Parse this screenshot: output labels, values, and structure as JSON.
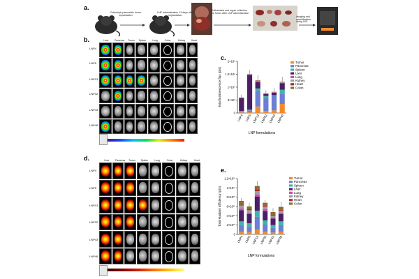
{
  "panel_a": {
    "label": "a.",
    "step1": "Orthotopic pancreatic tumor implantation",
    "step2": "LNP administration 13 days after implantation",
    "step3": "Euthanasia and organ collection 12 hours after LNP administration",
    "step4": "Imaging and quantification using IVIS"
  },
  "panel_b": {
    "label": "b.",
    "columns": [
      "Liver",
      "Pancreas",
      "Tumor",
      "Spleen",
      "Lung",
      "Colon",
      "Kidney",
      "Heart"
    ],
    "rows": [
      "LNP4",
      "LNP5",
      "LNP13",
      "LNP32",
      "LNP43",
      "LNP46"
    ]
  },
  "panel_d": {
    "label": "d.",
    "columns": [
      "Liver",
      "Pancreas",
      "Tumor",
      "Spleen",
      "Lung",
      "Colon",
      "Kidney",
      "Heart"
    ],
    "rows": [
      "LNP4",
      "LNP5",
      "LNP13",
      "LNP32",
      "LNP43",
      "LNP46"
    ]
  },
  "panel_c": {
    "label": "c."
  },
  "panel_e": {
    "label": "e."
  },
  "colors": {
    "Tumor": "#f28a2c",
    "Pancreas": "#6b7fd4",
    "Spleen": "#3fb5a8",
    "Liver": "#4b1f66",
    "Lung": "#c94fb4",
    "Kidney": "#9e9e9e",
    "Heart": "#b0282b",
    "Colon": "#8a6d2f"
  },
  "chart_data": [
    {
      "type": "bar",
      "stacked": true,
      "title": "",
      "xlabel": "LNP formulations",
      "ylabel": "Total luminescence flux (p/s)",
      "ylim": [
        0,
        200000000.0
      ],
      "yticks": [
        0,
        50000000.0,
        100000000.0,
        150000000.0,
        200000000.0
      ],
      "ytick_labels": [
        "0",
        "5×10⁷",
        "1×10⁸",
        "1.5×10⁸",
        "2×10⁸"
      ],
      "categories": [
        "LNP4",
        "LNP5",
        "LNP13",
        "LNP32",
        "LNP43",
        "LNP46"
      ],
      "legend": [
        "Tumor",
        "Pancreas",
        "Spleen",
        "Liver",
        "Lung",
        "Kidney",
        "Heart",
        "Colon"
      ],
      "series": [
        {
          "name": "Tumor",
          "values": [
            2000000.0,
            4000000.0,
            25000000.0,
            8000000.0,
            10000000.0,
            35000000.0
          ]
        },
        {
          "name": "Pancreas",
          "values": [
            4000000.0,
            6000000.0,
            60000000.0,
            50000000.0,
            55000000.0,
            40000000.0
          ]
        },
        {
          "name": "Spleen",
          "values": [
            2000000.0,
            3000000.0,
            10000000.0,
            8000000.0,
            4000000.0,
            15000000.0
          ]
        },
        {
          "name": "Liver",
          "values": [
            50000000.0,
            135000000.0,
            25000000.0,
            8000000.0,
            10000000.0,
            25000000.0
          ]
        },
        {
          "name": "Lung",
          "values": [
            500000.0,
            1000000.0,
            3000000.0,
            1000000.0,
            1000000.0,
            2000000.0
          ]
        },
        {
          "name": "Kidney",
          "values": [
            500000.0,
            1000000.0,
            2000000.0,
            1000000.0,
            1000000.0,
            2000000.0
          ]
        },
        {
          "name": "Heart",
          "values": [
            500000.0,
            500000.0,
            1000000.0,
            500000.0,
            500000.0,
            1000000.0
          ]
        },
        {
          "name": "Colon",
          "values": [
            500000.0,
            500000.0,
            1000000.0,
            500000.0,
            500000.0,
            1000000.0
          ]
        }
      ]
    },
    {
      "type": "bar",
      "stacked": true,
      "title": "",
      "xlabel": "LNP formulations",
      "ylabel": "Total Radiant Efficiency (p/s)",
      "ylim": [
        0,
        120000000000.0
      ],
      "yticks": [
        0,
        20000000000.0,
        40000000000.0,
        60000000000.0,
        80000000000.0,
        100000000000.0,
        120000000000.0
      ],
      "ytick_labels": [
        "0",
        "2×10¹⁰",
        "4×10¹⁰",
        "6×10¹⁰",
        "8×10¹⁰",
        "1×10¹¹",
        "1.2×10¹¹"
      ],
      "categories": [
        "LNP4",
        "LNP5",
        "LNP13",
        "LNP32",
        "LNP43",
        "LNP46"
      ],
      "legend": [
        "Tumor",
        "Pancreas",
        "Spleen",
        "Liver",
        "Lung",
        "Kidney",
        "Heart",
        "Colon"
      ],
      "series": [
        {
          "name": "Tumor",
          "values": [
            6000000000.0,
            5000000000.0,
            10000000000.0,
            6000000000.0,
            4000000000.0,
            6000000000.0
          ]
        },
        {
          "name": "Pancreas",
          "values": [
            14000000000.0,
            12000000000.0,
            28000000000.0,
            15000000000.0,
            10000000000.0,
            14000000000.0
          ]
        },
        {
          "name": "Spleen",
          "values": [
            8000000000.0,
            7000000000.0,
            13000000000.0,
            9000000000.0,
            6000000000.0,
            8000000000.0
          ]
        },
        {
          "name": "Liver",
          "values": [
            24000000000.0,
            20000000000.0,
            30000000000.0,
            20000000000.0,
            14000000000.0,
            16000000000.0
          ]
        },
        {
          "name": "Lung",
          "values": [
            4000000000.0,
            3000000000.0,
            5000000000.0,
            4000000000.0,
            2000000000.0,
            3000000000.0
          ]
        },
        {
          "name": "Kidney",
          "values": [
            6000000000.0,
            5000000000.0,
            7000000000.0,
            5000000000.0,
            4000000000.0,
            4000000000.0
          ]
        },
        {
          "name": "Heart",
          "values": [
            2000000000.0,
            2000000000.0,
            3000000000.0,
            2000000000.0,
            2000000000.0,
            2000000000.0
          ]
        },
        {
          "name": "Colon",
          "values": [
            8000000000.0,
            6000000000.0,
            8000000000.0,
            7000000000.0,
            6000000000.0,
            6000000000.0
          ]
        }
      ]
    }
  ]
}
